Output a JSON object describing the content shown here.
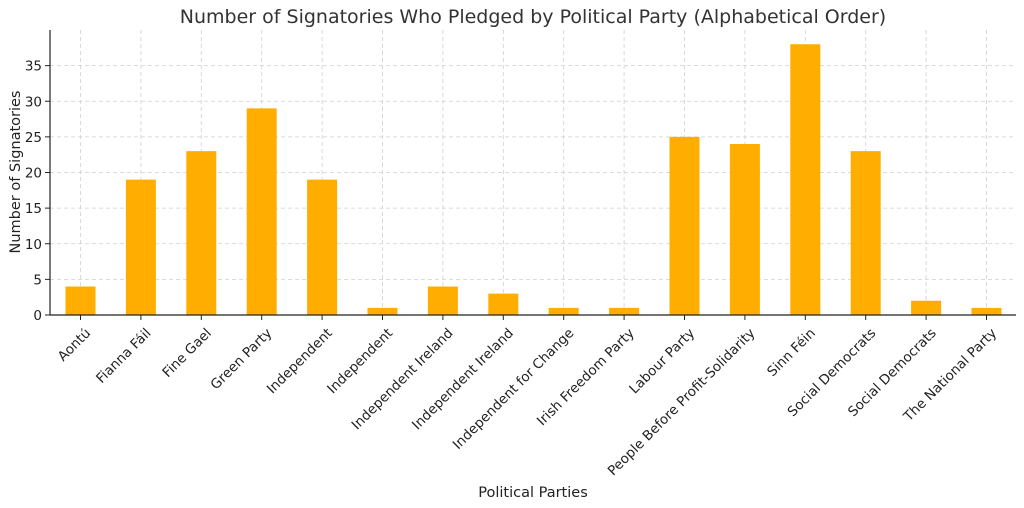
{
  "chart_data": {
    "type": "bar",
    "title": "Number of Signatories Who Pledged by Political Party (Alphabetical Order)",
    "xlabel": "Political Parties",
    "ylabel": "Number of Signatories",
    "categories": [
      "Aontú",
      "Fianna Fáil",
      "Fine Gael",
      "Green Party",
      "Independent",
      "Independent ",
      "Independent Ireland",
      "Independent Ireland ",
      "Independent for Change",
      "Irish Freedom Party",
      "Labour Party",
      "People Before Profit-Solidarity",
      "Sinn Féin",
      "Social Democrats",
      "Social Democrats ",
      "The National Party"
    ],
    "values": [
      4,
      19,
      23,
      29,
      19,
      1,
      4,
      3,
      1,
      1,
      25,
      24,
      38,
      23,
      2,
      1
    ],
    "ylim": [
      0,
      40
    ],
    "yticks": [
      0,
      5,
      10,
      15,
      20,
      25,
      30,
      35
    ],
    "grid": true,
    "bar_color": "#FFAE00"
  }
}
